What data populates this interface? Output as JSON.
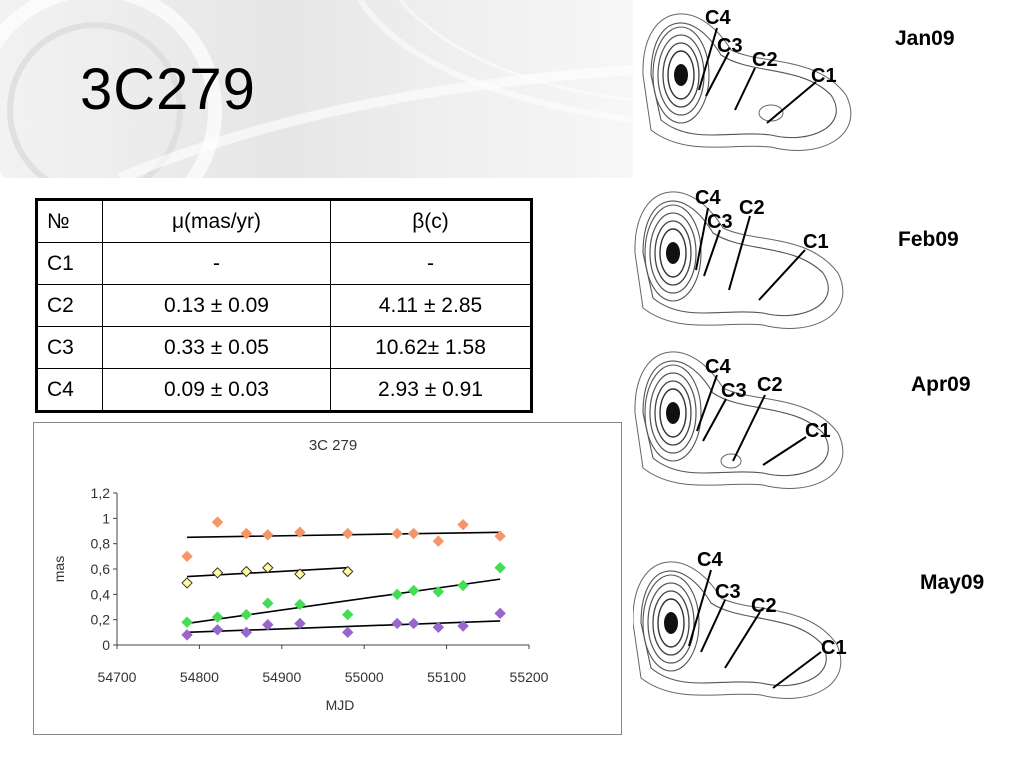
{
  "slide": {
    "title": "3C279"
  },
  "table": {
    "headers": [
      "№",
      "μ(mas/yr)",
      "β(c)"
    ],
    "rows": [
      [
        "C1",
        "-",
        "-"
      ],
      [
        "C2",
        "0.13 ± 0.09",
        "4.11 ± 2.85"
      ],
      [
        "C3",
        "0.33 ± 0.05",
        "10.62± 1.58"
      ],
      [
        "C4",
        "0.09 ± 0.03",
        "2.93 ± 0.91"
      ]
    ]
  },
  "chart_data": {
    "type": "scatter",
    "title": "3C 279",
    "xlabel": "MJD",
    "ylabel": "mas",
    "xlim": [
      54700,
      55200
    ],
    "ylim": [
      0,
      1.2
    ],
    "x_ticks": [
      "54700",
      "54800",
      "54900",
      "55000",
      "55100",
      "55200"
    ],
    "y_ticks": [
      "0",
      "0,2",
      "0,4",
      "0,6",
      "0,8",
      "1",
      "1,2"
    ],
    "grid": false,
    "legend": "none",
    "series": [
      {
        "color": "#f4956a",
        "points": [
          [
            54785,
            0.7
          ],
          [
            54822,
            0.97
          ],
          [
            54857,
            0.88
          ],
          [
            54883,
            0.87
          ],
          [
            54922,
            0.89
          ],
          [
            54980,
            0.88
          ],
          [
            55040,
            0.88
          ],
          [
            55060,
            0.88
          ],
          [
            55090,
            0.82
          ],
          [
            55120,
            0.95
          ],
          [
            55165,
            0.86
          ]
        ],
        "trend": [
          [
            54785,
            0.85
          ],
          [
            55165,
            0.89
          ]
        ]
      },
      {
        "color": "#ffff99",
        "points": [
          [
            54785,
            0.49
          ],
          [
            54822,
            0.57
          ],
          [
            54857,
            0.58
          ],
          [
            54883,
            0.61
          ],
          [
            54922,
            0.56
          ],
          [
            54980,
            0.58
          ]
        ],
        "trend": [
          [
            54785,
            0.54
          ],
          [
            54980,
            0.61
          ]
        ]
      },
      {
        "color": "#44dd55",
        "points": [
          [
            54785,
            0.18
          ],
          [
            54822,
            0.22
          ],
          [
            54857,
            0.24
          ],
          [
            54883,
            0.33
          ],
          [
            54922,
            0.32
          ],
          [
            54980,
            0.24
          ],
          [
            55040,
            0.4
          ],
          [
            55060,
            0.43
          ],
          [
            55090,
            0.42
          ],
          [
            55120,
            0.47
          ],
          [
            55165,
            0.61
          ]
        ],
        "trend": [
          [
            54785,
            0.17
          ],
          [
            55165,
            0.52
          ]
        ]
      },
      {
        "color": "#9966cc",
        "points": [
          [
            54785,
            0.08
          ],
          [
            54822,
            0.12
          ],
          [
            54857,
            0.1
          ],
          [
            54883,
            0.16
          ],
          [
            54922,
            0.17
          ],
          [
            54980,
            0.1
          ],
          [
            55040,
            0.17
          ],
          [
            55060,
            0.17
          ],
          [
            55090,
            0.14
          ],
          [
            55120,
            0.15
          ],
          [
            55165,
            0.25
          ]
        ],
        "trend": [
          [
            54785,
            0.1
          ],
          [
            55165,
            0.19
          ]
        ]
      }
    ]
  },
  "maps": [
    {
      "epoch": "Jan09",
      "components": [
        "C4",
        "C3",
        "C2",
        "C1"
      ]
    },
    {
      "epoch": "Feb09",
      "components": [
        "C4",
        "C3",
        "C2",
        "C1"
      ]
    },
    {
      "epoch": "Apr09",
      "components": [
        "C4",
        "C3",
        "C2",
        "C1"
      ]
    },
    {
      "epoch": "May09",
      "components": [
        "C4",
        "C3",
        "C2",
        "C1"
      ]
    }
  ]
}
